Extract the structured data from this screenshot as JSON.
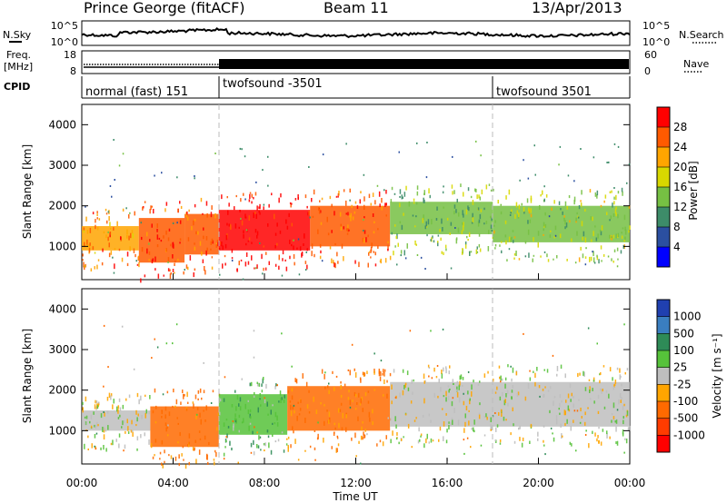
{
  "header": {
    "station": "Prince George (fitACF)",
    "beam": "Beam 11",
    "date": "13/Apr/2013"
  },
  "strip_labels": {
    "nsky": "N.Sky",
    "nsearch": "N.Search",
    "nsearch_ticks": [
      "10^5",
      "10^0"
    ],
    "freq": "Freq.",
    "freq_unit": "[MHz]",
    "freq_ticks": [
      "18",
      "8"
    ],
    "nave": "Nave",
    "nave_ticks": [
      "60",
      "0"
    ],
    "cpid": "CPID"
  },
  "cpid_segments": [
    {
      "label": "normal (fast) 151",
      "start_hour": 0
    },
    {
      "label": "twofsound -3501",
      "start_hour": 6
    },
    {
      "label": "twofsound 3501",
      "start_hour": 18
    }
  ],
  "time_axis": {
    "label": "Time UT",
    "ticks": [
      "00:00",
      "04:00",
      "08:00",
      "12:00",
      "16:00",
      "20:00",
      "00:00"
    ],
    "tick_hours": [
      0,
      4,
      8,
      12,
      16,
      20,
      24
    ],
    "range": [
      0,
      24
    ]
  },
  "power_panel": {
    "ylabel": "Slant Range [km]",
    "yticks": [
      "4000",
      "3000",
      "2000",
      "1000"
    ],
    "ytick_values": [
      4000,
      3000,
      2000,
      1000
    ],
    "ylim": [
      180,
      4500
    ]
  },
  "velocity_panel": {
    "ylabel": "Slant Range [km]",
    "yticks": [
      "4000",
      "3000",
      "2000",
      "1000"
    ],
    "ytick_values": [
      4000,
      3000,
      2000,
      1000
    ],
    "ylim": [
      180,
      4500
    ]
  },
  "power_colorbar": {
    "label": "Power [dB]",
    "ticks": [
      "28",
      "24",
      "20",
      "16",
      "12",
      "8",
      "4"
    ],
    "colors": [
      "#ff0000",
      "#ff5a00",
      "#ffa500",
      "#d8d800",
      "#76c043",
      "#3d8c69",
      "#2b4fa0",
      "#0000ff"
    ]
  },
  "velocity_colorbar": {
    "label": "Velocity [m s⁻¹]",
    "ticks": [
      "1000",
      "500",
      "100",
      "25",
      "-25",
      "-100",
      "-500",
      "-1000"
    ],
    "colors": [
      "#2040b0",
      "#3a7ec0",
      "#2e8b57",
      "#56c23a",
      "#bebebe",
      "#ffa500",
      "#ff6a00",
      "#ff3c00",
      "#ff0000"
    ]
  },
  "chart_data": [
    {
      "type": "heatmap",
      "title": "Power",
      "xlabel": "Time UT",
      "ylabel": "Slant Range [km]",
      "xlim": [
        0,
        24
      ],
      "ylim": [
        180,
        4500
      ],
      "colorbar_label": "Power [dB]",
      "bands": [
        {
          "t": [
            0,
            2.5
          ],
          "range": [
            900,
            1500
          ],
          "power_db": 22
        },
        {
          "t": [
            2.5,
            4.5
          ],
          "range": [
            600,
            1700
          ],
          "power_db": 26
        },
        {
          "t": [
            4.5,
            6
          ],
          "range": [
            800,
            1800
          ],
          "power_db": 24
        },
        {
          "t": [
            6,
            10
          ],
          "range": [
            900,
            1900
          ],
          "power_db": 28
        },
        {
          "t": [
            10,
            13.5
          ],
          "range": [
            1000,
            2000
          ],
          "power_db": 24
        },
        {
          "t": [
            13.5,
            18
          ],
          "range": [
            1300,
            2100
          ],
          "power_db": 12
        },
        {
          "t": [
            18,
            24
          ],
          "range": [
            1100,
            2000
          ],
          "power_db": 14
        }
      ]
    },
    {
      "type": "heatmap",
      "title": "Velocity",
      "xlabel": "Time UT",
      "ylabel": "Slant Range [km]",
      "xlim": [
        0,
        24
      ],
      "ylim": [
        180,
        4500
      ],
      "colorbar_label": "Velocity [m s⁻¹]",
      "bands": [
        {
          "t": [
            0,
            3
          ],
          "range": [
            1000,
            1500
          ],
          "velocity": 0
        },
        {
          "t": [
            3,
            6
          ],
          "range": [
            600,
            1600
          ],
          "velocity": -150
        },
        {
          "t": [
            6,
            9
          ],
          "range": [
            900,
            1900
          ],
          "velocity": 80
        },
        {
          "t": [
            9,
            13.5
          ],
          "range": [
            1000,
            2100
          ],
          "velocity": -120
        },
        {
          "t": [
            13.5,
            24
          ],
          "range": [
            1100,
            2200
          ],
          "velocity": 0
        }
      ]
    }
  ]
}
